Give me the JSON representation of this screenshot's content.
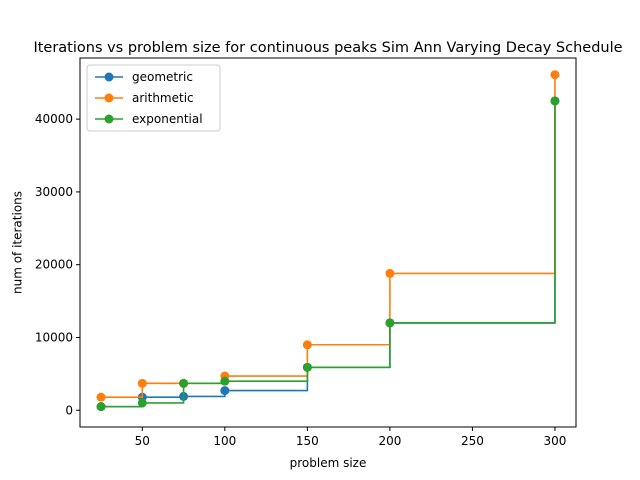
{
  "chart_data": {
    "type": "line",
    "title": "Iterations vs problem size for continuous peaks Sim Ann Varying Decay Schedule",
    "xlabel": "problem size",
    "ylabel": "num of iterations",
    "xlim": [
      12.25,
      312.75
    ],
    "ylim": [
      -2300,
      48400
    ],
    "x_ticks": [
      50,
      100,
      150,
      200,
      250,
      300
    ],
    "y_ticks": [
      0,
      10000,
      20000,
      30000,
      40000
    ],
    "x_tick_labels": [
      "50",
      "100",
      "150",
      "200",
      "250",
      "300"
    ],
    "y_tick_labels": [
      "0",
      "10000",
      "20000",
      "30000",
      "40000"
    ],
    "step": "post",
    "legend_position": "top-left",
    "grid": false,
    "series": [
      {
        "name": "geometric",
        "color": "#1f77b4",
        "x": [
          25,
          50,
          75,
          100,
          150,
          200,
          300
        ],
        "y": [
          500,
          1800,
          1900,
          2700,
          5900,
          12000,
          42500
        ]
      },
      {
        "name": "arithmetic",
        "color": "#ff7f0e",
        "x": [
          25,
          50,
          75,
          100,
          150,
          200,
          300
        ],
        "y": [
          1800,
          3700,
          3700,
          4700,
          9000,
          18800,
          46100
        ]
      },
      {
        "name": "exponential",
        "color": "#2ca02c",
        "x": [
          25,
          50,
          75,
          100,
          150,
          200,
          300
        ],
        "y": [
          500,
          1000,
          3700,
          4000,
          5900,
          12000,
          42500
        ]
      }
    ]
  }
}
